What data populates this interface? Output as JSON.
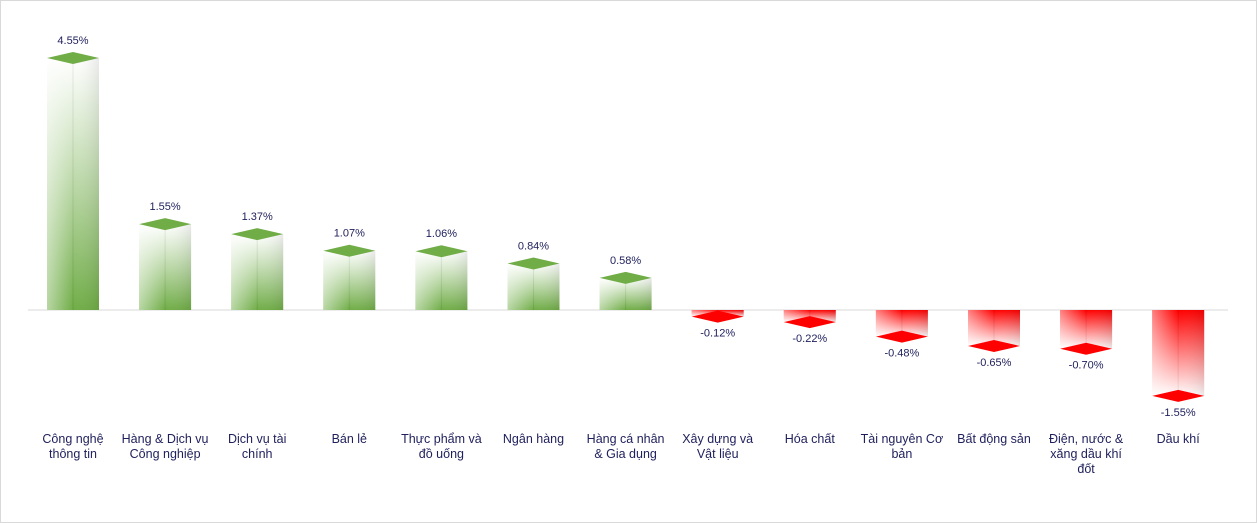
{
  "chart_data": {
    "type": "bar",
    "categories": [
      "Công nghệ thông tin",
      "Hàng & Dịch vụ Công nghiệp",
      "Dịch vụ tài chính",
      "Bán lẻ",
      "Thực phẩm và đồ uống",
      "Ngân hàng",
      "Hàng cá nhân & Gia dụng",
      "Xây dựng và Vật liệu",
      "Hóa chất",
      "Tài nguyên Cơ bản",
      "Bất động sản",
      "Điện, nước & xăng dầu khí đốt",
      "Dầu khí"
    ],
    "values": [
      4.55,
      1.55,
      1.37,
      1.07,
      1.06,
      0.84,
      0.58,
      -0.12,
      -0.22,
      -0.48,
      -0.65,
      -0.7,
      -1.55
    ],
    "value_labels": [
      "4.55%",
      "1.55%",
      "1.37%",
      "1.07%",
      "1.06%",
      "0.84%",
      "0.58%",
      "-0.12%",
      "-0.22%",
      "-0.48%",
      "-0.65%",
      "-0.70%",
      "-1.55%"
    ],
    "positive_color": "#70ad47",
    "negative_color": "#ff0000"
  }
}
